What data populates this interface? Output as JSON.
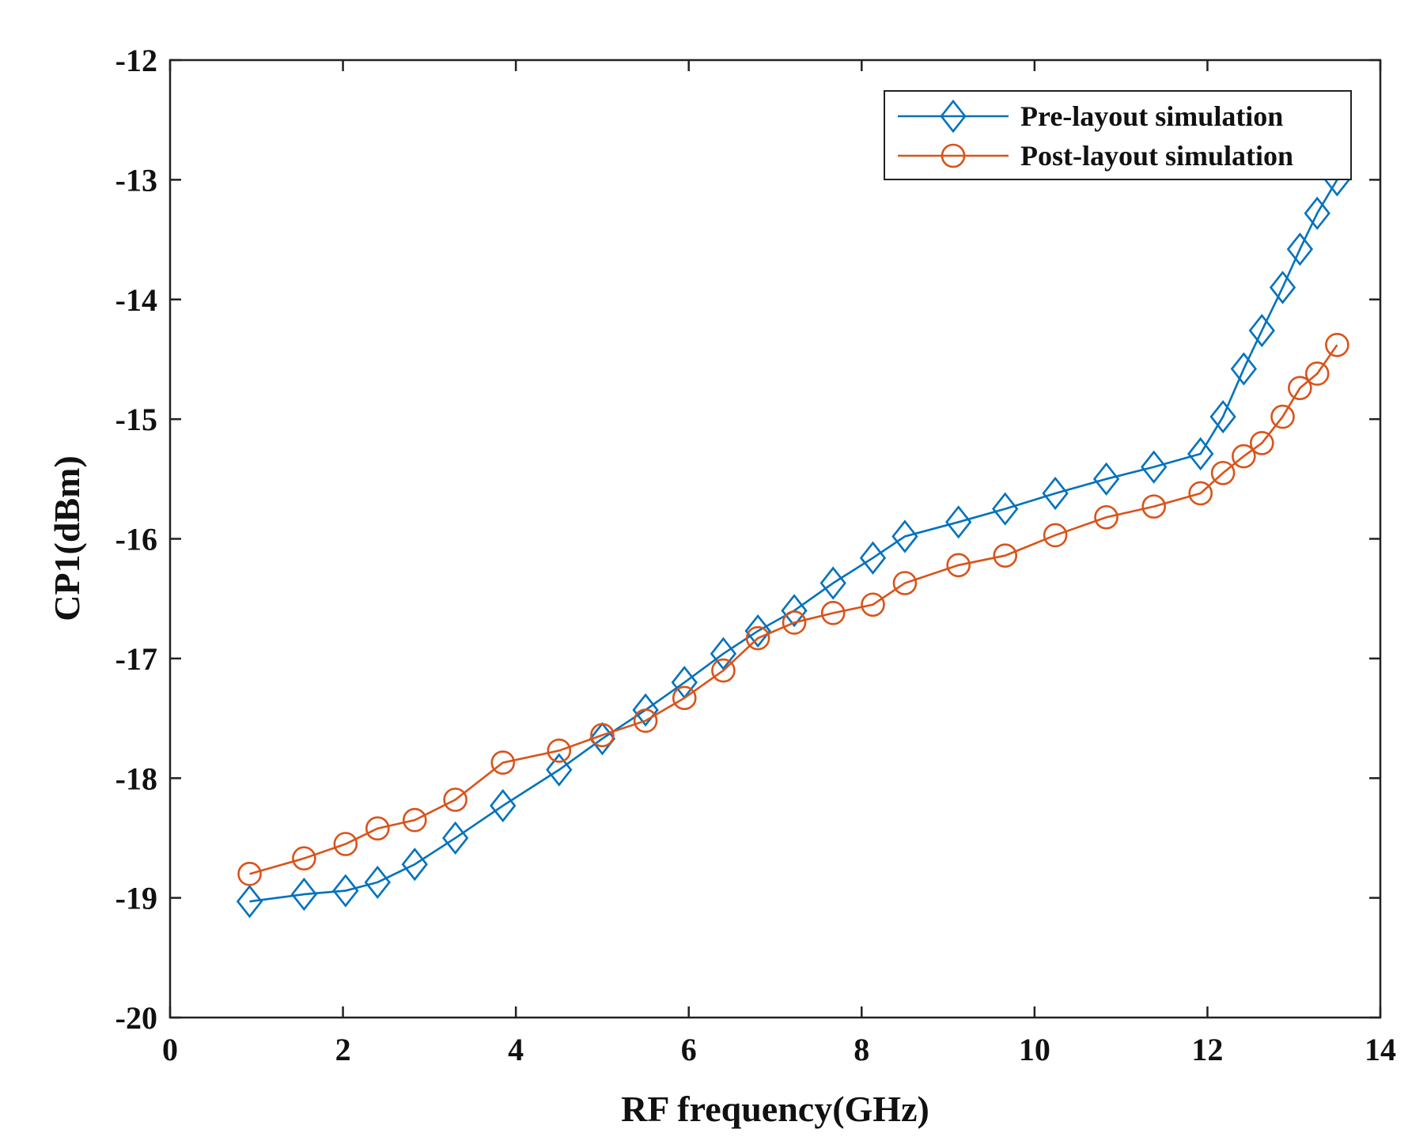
{
  "chart_data": {
    "type": "line",
    "title": "",
    "xlabel": "RF frequency(GHz)",
    "ylabel": "CP1(dBm)",
    "xlim": [
      0,
      14
    ],
    "ylim": [
      -20,
      -12
    ],
    "grid": false,
    "legend_position": "top-right",
    "x_ticks": [
      0,
      2,
      4,
      6,
      8,
      10,
      12,
      14
    ],
    "y_ticks": [
      -20,
      -19,
      -18,
      -17,
      -16,
      -15,
      -14,
      -13,
      -12
    ],
    "x_tick_labels": [
      "0",
      "2",
      "4",
      "6",
      "8",
      "10",
      "12",
      "14"
    ],
    "y_tick_labels": [
      "-20",
      "-19",
      "-18",
      "-17",
      "-16",
      "-15",
      "-14",
      "-13",
      "-12"
    ],
    "series": [
      {
        "name": "Pre-layout simulation",
        "color": "#0072BD",
        "marker": "diamond",
        "x": [
          0.92,
          1.55,
          2.03,
          2.4,
          2.83,
          3.3,
          3.85,
          4.5,
          5.0,
          5.5,
          5.95,
          6.4,
          6.8,
          7.22,
          7.67,
          8.13,
          8.5,
          9.12,
          9.66,
          10.24,
          10.83,
          11.38,
          11.92,
          12.18,
          12.42,
          12.63,
          12.87,
          13.07,
          13.27,
          13.5
        ],
        "y": [
          -19.03,
          -18.97,
          -18.94,
          -18.87,
          -18.72,
          -18.5,
          -18.23,
          -17.93,
          -17.67,
          -17.43,
          -17.2,
          -16.96,
          -16.77,
          -16.6,
          -16.37,
          -16.16,
          -15.98,
          -15.86,
          -15.75,
          -15.62,
          -15.5,
          -15.4,
          -15.29,
          -14.98,
          -14.58,
          -14.26,
          -13.9,
          -13.58,
          -13.28,
          -13.0
        ]
      },
      {
        "name": "Post-layout simulation",
        "color": "#D95319",
        "marker": "circle",
        "x": [
          0.92,
          1.55,
          2.03,
          2.4,
          2.83,
          3.3,
          3.85,
          4.5,
          5.0,
          5.5,
          5.95,
          6.4,
          6.8,
          7.22,
          7.67,
          8.13,
          8.5,
          9.12,
          9.66,
          10.24,
          10.83,
          11.38,
          11.92,
          12.18,
          12.42,
          12.63,
          12.87,
          13.07,
          13.27,
          13.5
        ],
        "y": [
          -18.8,
          -18.67,
          -18.55,
          -18.42,
          -18.35,
          -18.18,
          -17.87,
          -17.77,
          -17.64,
          -17.52,
          -17.33,
          -17.1,
          -16.83,
          -16.7,
          -16.62,
          -16.55,
          -16.37,
          -16.22,
          -16.14,
          -15.97,
          -15.82,
          -15.73,
          -15.62,
          -15.45,
          -15.31,
          -15.2,
          -14.98,
          -14.74,
          -14.62,
          -14.38
        ]
      }
    ]
  }
}
